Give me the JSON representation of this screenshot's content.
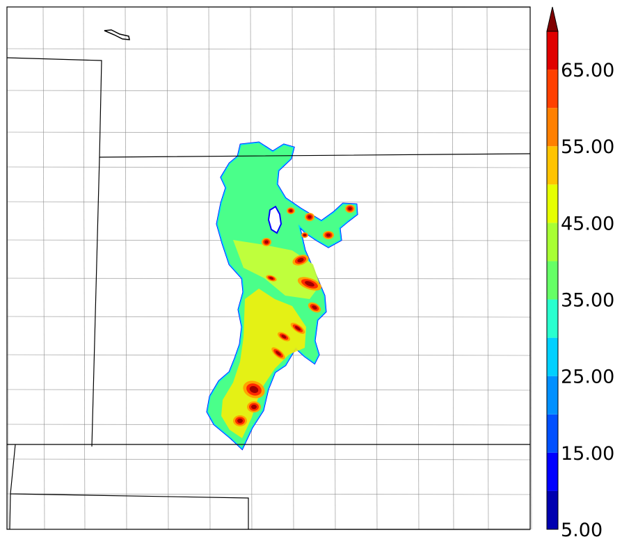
{
  "map": {
    "field_colors": {
      "outer_edge": "#0000ff",
      "low": "#00d8ff",
      "mid_low": "#4aff8a",
      "mid": "#ccff33",
      "mid_high": "#ffee00",
      "high": "#ffa400",
      "very_high": "#ff2a00",
      "extreme": "#a00000"
    },
    "boundary_colors": {
      "state": "#000000",
      "county": "#8a8a8a"
    }
  },
  "colorbar": {
    "extend": "max",
    "levels": [
      5,
      10,
      15,
      20,
      25,
      30,
      35,
      40,
      45,
      50,
      55,
      60,
      65,
      70
    ],
    "colors": [
      "#0000b0",
      "#0000ff",
      "#0050ff",
      "#0090ff",
      "#00d0ff",
      "#29ffcf",
      "#66ff66",
      "#a8ff33",
      "#e6ff00",
      "#ffc400",
      "#ff8000",
      "#ff4000",
      "#e00000",
      "#9a0000"
    ],
    "extend_color": "#800000",
    "tick_labels": [
      "5.00",
      "15.00",
      "25.00",
      "35.00",
      "45.00",
      "55.00",
      "65.00"
    ]
  }
}
